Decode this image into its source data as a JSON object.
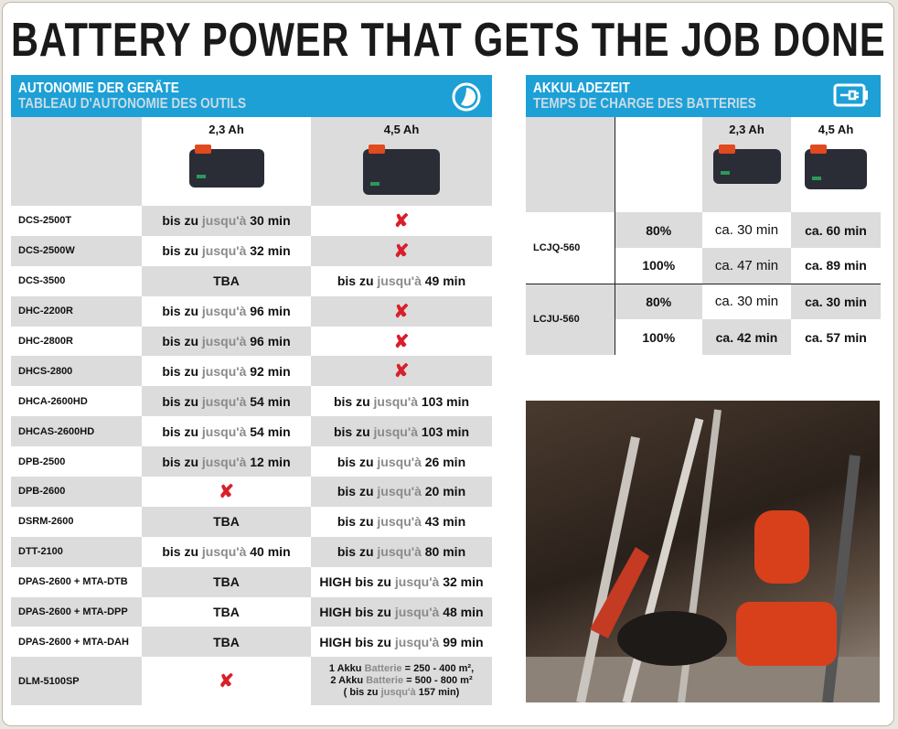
{
  "title": "BATTERY POWER THAT GETS THE JOB DONE",
  "left": {
    "heading_de": "AUTONOMIE DER GERÄTE",
    "heading_fr": "TABLEAU D'AUTONOMIE DES OUTILS",
    "icon": "clock-icon",
    "columns": [
      "2,3 Ah",
      "4,5 Ah"
    ],
    "rows": [
      {
        "name": "DCS-2500T",
        "c": [
          {
            "pre": "bis zu",
            "fr": "jusqu'à",
            "val": "30 min"
          },
          {
            "x": true
          }
        ]
      },
      {
        "name": "DCS-2500W",
        "c": [
          {
            "pre": "bis zu",
            "fr": "jusqu'à",
            "val": "32 min"
          },
          {
            "x": true
          }
        ]
      },
      {
        "name": "DCS-3500",
        "c": [
          {
            "tba": "TBA"
          },
          {
            "pre": "bis zu",
            "fr": "jusqu'à",
            "val": "49 min"
          }
        ]
      },
      {
        "name": "DHC-2200R",
        "c": [
          {
            "pre": "bis zu",
            "fr": "jusqu'à",
            "val": "96 min"
          },
          {
            "x": true
          }
        ]
      },
      {
        "name": "DHC-2800R",
        "c": [
          {
            "pre": "bis zu",
            "fr": "jusqu'à",
            "val": "96 min"
          },
          {
            "x": true
          }
        ]
      },
      {
        "name": "DHCS-2800",
        "c": [
          {
            "pre": "bis zu",
            "fr": "jusqu'à",
            "val": "92 min"
          },
          {
            "x": true
          }
        ]
      },
      {
        "name": "DHCA-2600HD",
        "c": [
          {
            "pre": "bis zu",
            "fr": "jusqu'à",
            "val": "54 min"
          },
          {
            "pre": "bis zu",
            "fr": "jusqu'à",
            "val": "103 min"
          }
        ]
      },
      {
        "name": "DHCAS-2600HD",
        "c": [
          {
            "pre": "bis zu",
            "fr": "jusqu'à",
            "val": "54 min"
          },
          {
            "pre": "bis zu",
            "fr": "jusqu'à",
            "val": "103 min"
          }
        ]
      },
      {
        "name": "DPB-2500",
        "c": [
          {
            "pre": "bis zu",
            "fr": "jusqu'à",
            "val": "12 min"
          },
          {
            "pre": "bis zu",
            "fr": "jusqu'à",
            "val": "26 min"
          }
        ]
      },
      {
        "name": "DPB-2600",
        "c": [
          {
            "x": true
          },
          {
            "pre": "bis zu",
            "fr": "jusqu'à",
            "val": "20 min"
          }
        ]
      },
      {
        "name": "DSRM-2600",
        "c": [
          {
            "tba": "TBA"
          },
          {
            "pre": "bis zu",
            "fr": "jusqu'à",
            "val": "43 min"
          }
        ]
      },
      {
        "name": "DTT-2100",
        "c": [
          {
            "pre": "bis zu",
            "fr": "jusqu'à",
            "val": "40 min"
          },
          {
            "pre": "bis zu",
            "fr": "jusqu'à",
            "val": "80 min"
          }
        ]
      },
      {
        "name": "DPAS-2600 + MTA-DTB",
        "c": [
          {
            "tba": "TBA"
          },
          {
            "pre": "HIGH bis zu",
            "fr": "jusqu'à",
            "val": "32 min"
          }
        ]
      },
      {
        "name": "DPAS-2600 + MTA-DPP",
        "c": [
          {
            "tba": "TBA"
          },
          {
            "pre": "HIGH bis zu",
            "fr": "jusqu'à",
            "val": "48 min"
          }
        ]
      },
      {
        "name": "DPAS-2600 + MTA-DAH",
        "c": [
          {
            "tba": "TBA"
          },
          {
            "pre": "HIGH bis zu",
            "fr": "jusqu'à",
            "val": "99 min"
          }
        ]
      }
    ],
    "last": {
      "name": "DLM-5100SP",
      "l1": {
        "a": "1 Akku",
        "fr": "Batterie",
        "b": "= 250 - 400 m²,"
      },
      "l2": {
        "a": "2 Akku",
        "fr": "Batterie",
        "b": "= 500 - 800 m²"
      },
      "l3": {
        "a": "( bis zu",
        "fr": "jusqu'à",
        "b": "157 min)"
      }
    }
  },
  "right": {
    "heading_de": "AKKULADEZEIT",
    "heading_fr": "TEMPS DE CHARGE DES BATTERIES",
    "icon": "battery-charging-icon",
    "columns": [
      "2,3 Ah",
      "4,5 Ah"
    ],
    "chargers": [
      {
        "name": "LCJQ-560",
        "rows": [
          {
            "pct": "80%",
            "a": "ca. 30 min",
            "b": "ca. 60 min"
          },
          {
            "pct": "100%",
            "a": "ca. 47 min",
            "b": "ca. 89 min"
          }
        ]
      },
      {
        "name": "LCJU-560",
        "rows": [
          {
            "pct": "80%",
            "a": "ca. 30 min",
            "b": "ca. 30 min"
          },
          {
            "pct": "100%",
            "a": "ca. 42 min",
            "b": "ca. 57 min"
          }
        ]
      }
    ]
  },
  "colors": {
    "accent": "#1da0d6",
    "cross": "#d8202a",
    "shade": "#dcdcdc"
  }
}
